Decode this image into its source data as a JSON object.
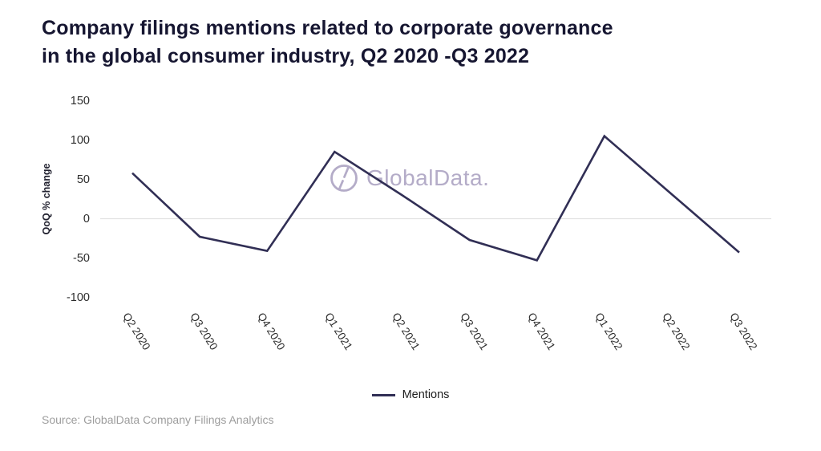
{
  "title": {
    "line1": "Company filings mentions related to corporate governance",
    "line2": "in the global consumer industry, Q2 2020 -Q3 2022"
  },
  "watermark": {
    "icon": "globaldata-logo-icon",
    "text": "GlobalData.",
    "color": "#b4acc8"
  },
  "source": "Source: GlobalData Company Filings Analytics",
  "colors": {
    "line": "#312f55",
    "title_text": "#161631",
    "axis_text": "#2d2d2d",
    "zero_gridline": "#e2e2e2",
    "watermark": "#b4acc8",
    "source_text": "#9d9d9d"
  },
  "chart_data": {
    "type": "line",
    "title": "Company filings mentions related to corporate governance in the global consumer industry, Q2 2020 -Q3 2022",
    "ylabel": "QoQ % change",
    "xlabel": "",
    "categories": [
      "Q2 2020",
      "Q3 2020",
      "Q4 2020",
      "Q1 2021",
      "Q2 2021",
      "Q3 2021",
      "Q4 2021",
      "Q1 2022",
      "Q2 2022",
      "Q3 2022"
    ],
    "series": [
      {
        "name": "Mentions",
        "color": "#312f55",
        "values": [
          58,
          -23,
          -41,
          85,
          30,
          -27,
          -53,
          105,
          31,
          -43
        ]
      }
    ],
    "yticks": [
      150,
      100,
      50,
      0,
      -50,
      -100
    ],
    "ylim": [
      -110,
      166
    ],
    "grid": "zero-line-only",
    "legend_position": "bottom"
  }
}
